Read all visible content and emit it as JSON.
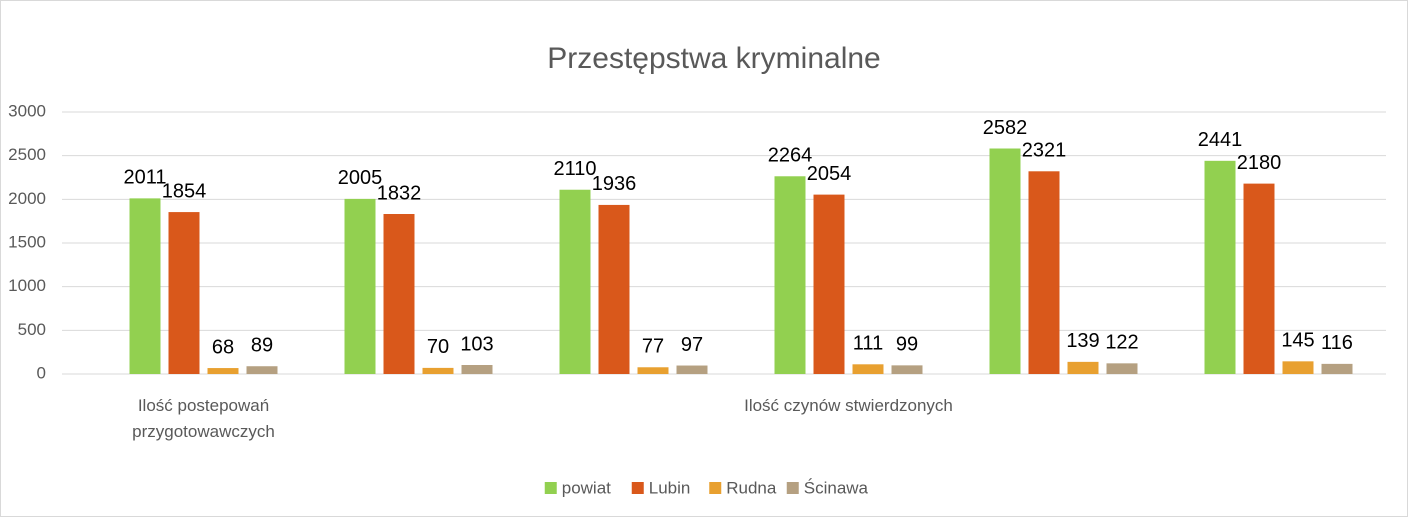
{
  "chart_data": {
    "type": "bar",
    "title": "Przestępstwa kryminalne",
    "categories": [
      "Ilość postepowań przygotowawczych",
      null,
      null,
      "Ilość czynów stwierdzonych",
      null,
      null
    ],
    "series": [
      {
        "name": "powiat",
        "color": "#92d050",
        "values": [
          2011,
          2005,
          2110,
          2264,
          2582,
          2441
        ]
      },
      {
        "name": "Lubin",
        "color": "#d9581b",
        "values": [
          1854,
          1832,
          1936,
          2054,
          2321,
          2180
        ]
      },
      {
        "name": "Rudna",
        "color": "#e8a030",
        "values": [
          68,
          70,
          77,
          111,
          139,
          145
        ]
      },
      {
        "name": "Ścinawa",
        "color": "#b5a081",
        "values": [
          89,
          103,
          97,
          99,
          122,
          116
        ]
      }
    ],
    "ylim": [
      0,
      3000
    ],
    "yticks": [
      0,
      500,
      1000,
      1500,
      2000,
      2500,
      3000
    ],
    "grid": true,
    "legend": "bottom"
  }
}
